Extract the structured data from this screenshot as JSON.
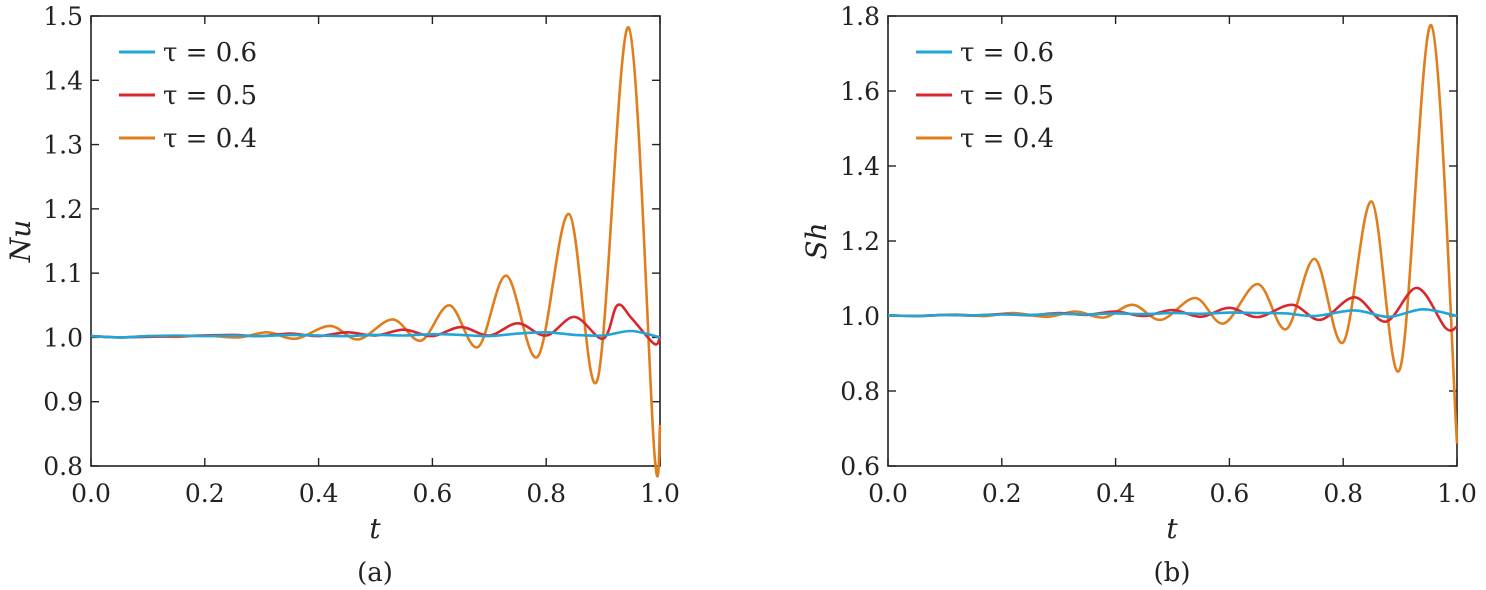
{
  "figures": [
    {
      "caption": "(a)"
    },
    {
      "caption": "(b)"
    }
  ],
  "chart_data": [
    {
      "type": "line",
      "panel": "(a)",
      "xlabel": "t",
      "ylabel": "Nu",
      "xlim": [
        0.0,
        1.0
      ],
      "ylim": [
        0.8,
        1.5
      ],
      "xticks": [
        "0.0",
        "0.2",
        "0.4",
        "0.6",
        "0.8",
        "1.0"
      ],
      "yticks": [
        "0.8",
        "0.9",
        "1.0",
        "1.1",
        "1.2",
        "1.3",
        "1.4",
        "1.5"
      ],
      "legend_position": "top-left",
      "grid": false,
      "series": [
        {
          "name": "τ = 0.6",
          "color": "#1fa6d6",
          "x": [
            0.0,
            0.05,
            0.1,
            0.15,
            0.2,
            0.25,
            0.3,
            0.35,
            0.4,
            0.45,
            0.5,
            0.55,
            0.6,
            0.65,
            0.7,
            0.75,
            0.8,
            0.85,
            0.9,
            0.95,
            1.0
          ],
          "y": [
            1.002,
            1.0,
            1.002,
            1.003,
            1.002,
            1.003,
            1.002,
            1.004,
            1.003,
            1.002,
            1.004,
            1.003,
            1.005,
            1.004,
            1.002,
            1.006,
            1.008,
            1.004,
            1.003,
            1.01,
            1.0
          ]
        },
        {
          "name": "τ = 0.5",
          "color": "#d9272e",
          "x": [
            0.0,
            0.05,
            0.1,
            0.15,
            0.2,
            0.25,
            0.3,
            0.35,
            0.4,
            0.45,
            0.5,
            0.55,
            0.6,
            0.65,
            0.7,
            0.75,
            0.8,
            0.85,
            0.9,
            0.925,
            0.95,
            0.99,
            1.0
          ],
          "y": [
            1.002,
            1.0,
            1.001,
            1.002,
            1.003,
            1.004,
            1.002,
            1.006,
            1.002,
            1.008,
            1.003,
            1.012,
            1.002,
            1.016,
            1.003,
            1.022,
            1.003,
            1.032,
            0.998,
            1.05,
            1.03,
            0.99,
            1.002
          ]
        },
        {
          "name": "τ = 0.4",
          "color": "#e07e1e",
          "x": [
            0.0,
            0.05,
            0.1,
            0.15,
            0.2,
            0.26,
            0.31,
            0.36,
            0.42,
            0.47,
            0.53,
            0.58,
            0.63,
            0.68,
            0.73,
            0.785,
            0.84,
            0.89,
            0.945,
            0.99,
            1.0
          ],
          "y": [
            1.002,
            1.0,
            1.002,
            1.001,
            1.003,
            1.0,
            1.008,
            0.998,
            1.018,
            0.997,
            1.028,
            0.995,
            1.05,
            0.985,
            1.096,
            0.97,
            1.192,
            0.934,
            1.482,
            0.822,
            0.864
          ]
        }
      ]
    },
    {
      "type": "line",
      "panel": "(b)",
      "xlabel": "t",
      "ylabel": "Sh",
      "xlim": [
        0.0,
        1.0
      ],
      "ylim": [
        0.6,
        1.8
      ],
      "xticks": [
        "0.0",
        "0.2",
        "0.4",
        "0.6",
        "0.8",
        "1.0"
      ],
      "yticks": [
        "0.6",
        "0.8",
        "1.0",
        "1.2",
        "1.4",
        "1.6",
        "1.8"
      ],
      "legend_position": "top-left",
      "grid": false,
      "series": [
        {
          "name": "τ = 0.6",
          "color": "#1fa6d6",
          "x": [
            0.0,
            0.05,
            0.1,
            0.15,
            0.2,
            0.25,
            0.3,
            0.35,
            0.4,
            0.45,
            0.5,
            0.55,
            0.6,
            0.65,
            0.7,
            0.75,
            0.82,
            0.88,
            0.94,
            1.0
          ],
          "y": [
            1.002,
            1.0,
            1.003,
            1.002,
            1.004,
            1.003,
            1.006,
            1.004,
            1.007,
            1.005,
            1.008,
            1.006,
            1.009,
            1.008,
            1.007,
            1.0,
            1.015,
            0.998,
            1.018,
            1.0
          ]
        },
        {
          "name": "τ = 0.5",
          "color": "#d9272e",
          "x": [
            0.0,
            0.05,
            0.1,
            0.15,
            0.2,
            0.25,
            0.3,
            0.35,
            0.4,
            0.45,
            0.5,
            0.55,
            0.6,
            0.65,
            0.71,
            0.76,
            0.82,
            0.875,
            0.93,
            0.98,
            1.0
          ],
          "y": [
            1.002,
            1.0,
            1.003,
            1.001,
            1.005,
            1.002,
            1.008,
            1.003,
            1.012,
            1.0,
            1.016,
            0.998,
            1.022,
            0.997,
            1.03,
            0.99,
            1.05,
            0.985,
            1.075,
            0.968,
            0.972
          ]
        },
        {
          "name": "τ = 0.4",
          "color": "#e07e1e",
          "x": [
            0.0,
            0.06,
            0.12,
            0.17,
            0.22,
            0.28,
            0.33,
            0.38,
            0.43,
            0.48,
            0.54,
            0.59,
            0.65,
            0.7,
            0.75,
            0.8,
            0.85,
            0.9,
            0.955,
            1.0
          ],
          "y": [
            1.002,
            1.0,
            1.004,
            1.0,
            1.008,
            0.998,
            1.012,
            0.996,
            1.03,
            0.99,
            1.048,
            0.98,
            1.085,
            0.965,
            1.152,
            0.93,
            1.305,
            0.86,
            1.775,
            0.66
          ]
        }
      ]
    }
  ]
}
